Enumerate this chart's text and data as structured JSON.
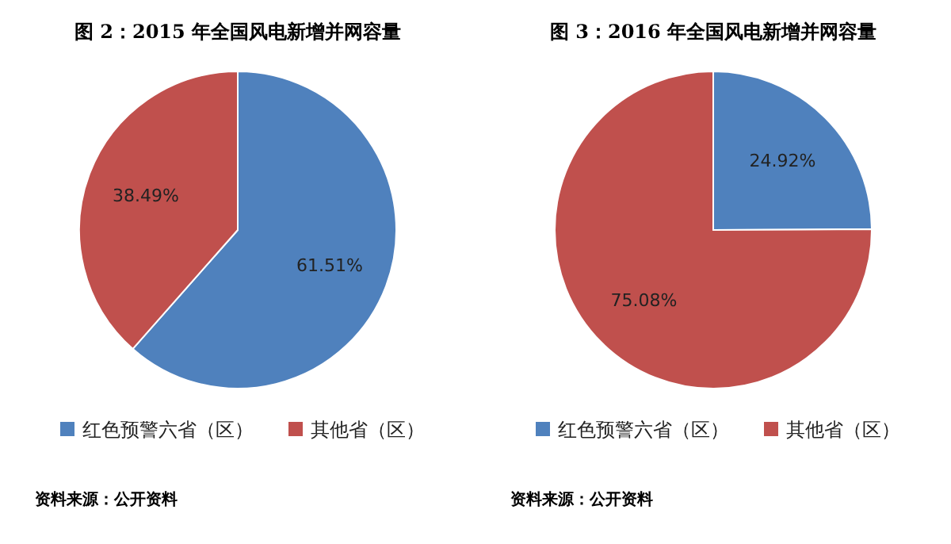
{
  "chart_data": [
    {
      "type": "pie",
      "title": "图 2：2015 年全国风电新增并网容量",
      "categories": [
        "红色预警六省（区）",
        "其他省（区）"
      ],
      "values": [
        61.51,
        38.49
      ],
      "colors": [
        "#4f81bd",
        "#c0504d"
      ],
      "value_labels": [
        "61.51%",
        "38.49%"
      ],
      "legend": "bottom",
      "annotations": [
        "资料来源：公开资料"
      ]
    },
    {
      "type": "pie",
      "title": "图 3：2016 年全国风电新增并网容量",
      "categories": [
        "红色预警六省（区）",
        "其他省（区）"
      ],
      "values": [
        24.92,
        75.08
      ],
      "colors": [
        "#4f81bd",
        "#c0504d"
      ],
      "value_labels": [
        "24.92%",
        "75.08%"
      ],
      "legend": "bottom",
      "annotations": [
        "资料来源：公开资料"
      ]
    }
  ]
}
